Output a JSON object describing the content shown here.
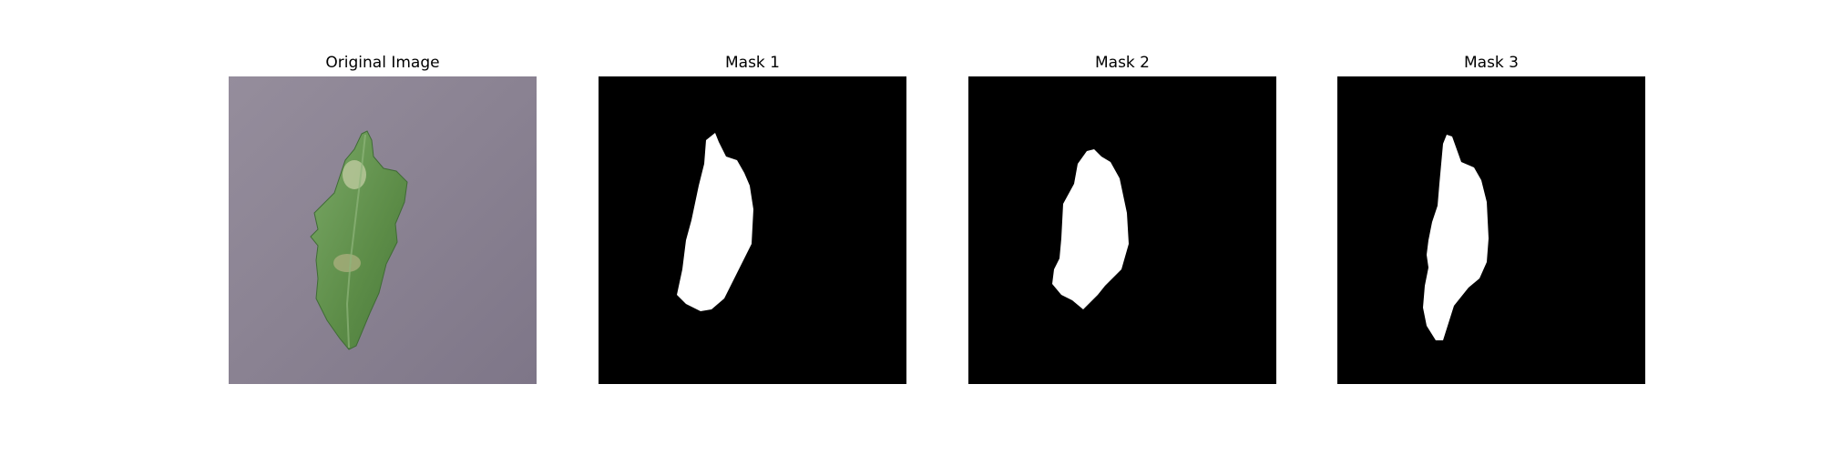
{
  "figure": {
    "panels": [
      {
        "title": "Original Image",
        "kind": "photo"
      },
      {
        "title": "Mask 1",
        "kind": "mask"
      },
      {
        "title": "Mask 2",
        "kind": "mask"
      },
      {
        "title": "Mask 3",
        "kind": "mask"
      }
    ],
    "colors": {
      "page_background": "#ffffff",
      "photo_background": "#8f8795",
      "leaf": "#5f8f4a",
      "mask_background": "#000000",
      "mask_foreground": "#ffffff"
    }
  }
}
